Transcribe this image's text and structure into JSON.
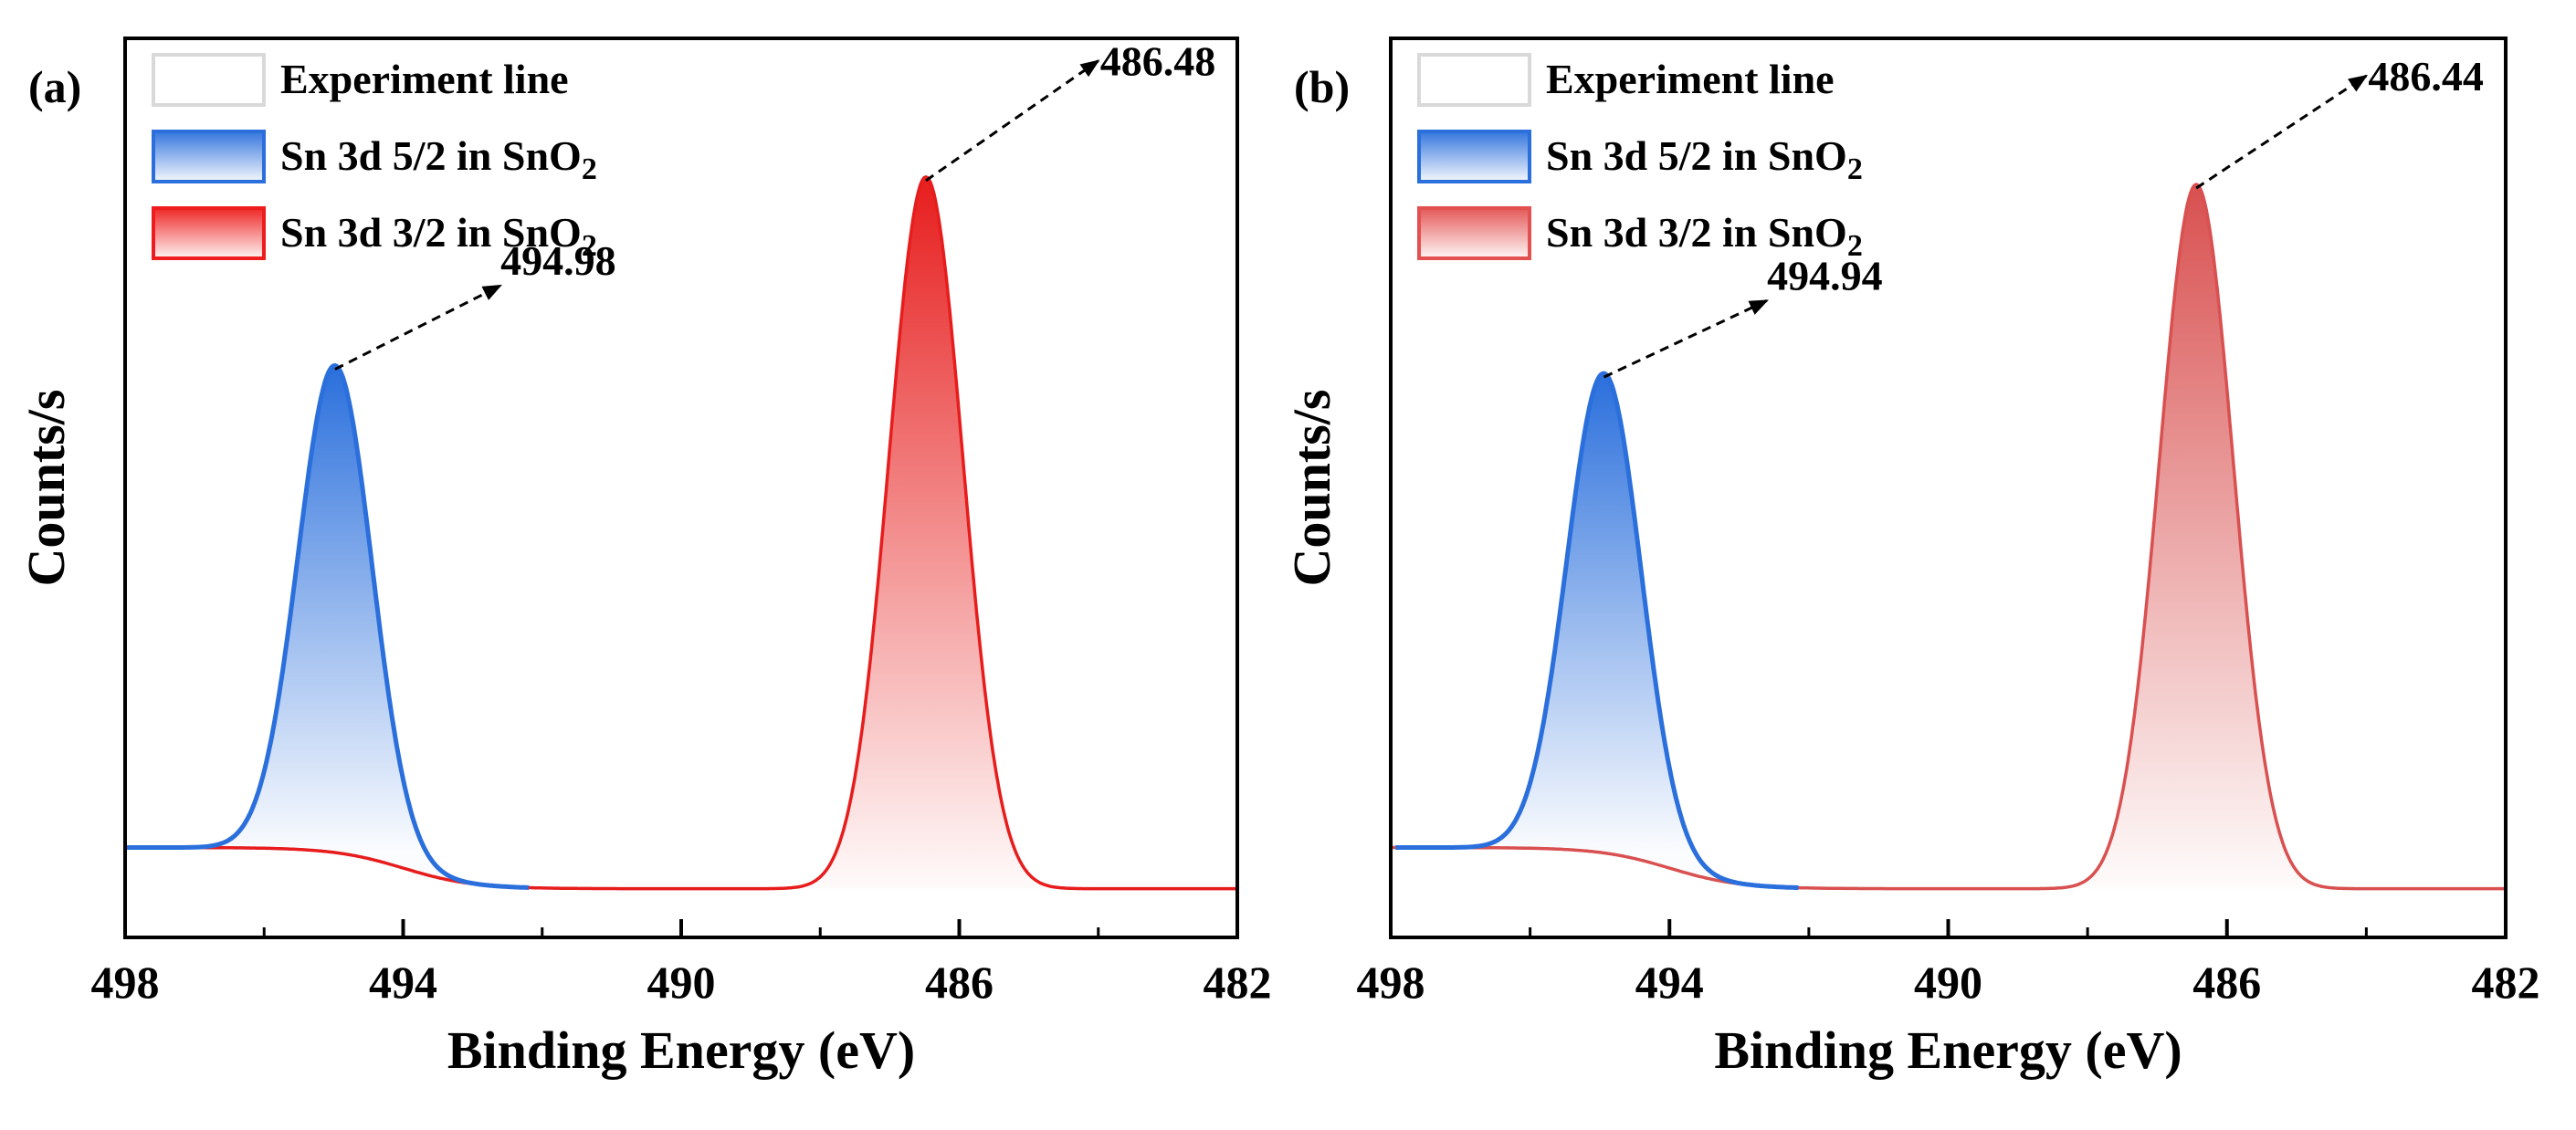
{
  "chart_data": [
    {
      "type": "line",
      "panel_label": "(a)",
      "xlabel": "Binding Energy (eV)",
      "ylabel": "Counts/s",
      "xlim": [
        498,
        482
      ],
      "ylim": [
        -0.08,
        1.12
      ],
      "xticks": [
        498,
        494,
        490,
        486,
        482
      ],
      "x_tick_labels": [
        "498",
        "494",
        "490",
        "486",
        "482"
      ],
      "baseline": {
        "left": 0.04,
        "right": -0.015
      },
      "legend": {
        "position": "top-left",
        "entries": [
          {
            "base": "Experiment line",
            "sub": "",
            "color": "#d9d9d9"
          },
          {
            "base": "Sn 3d 5/2 in SnO",
            "sub": "2",
            "color": "#2a6fdc"
          },
          {
            "base": "Sn 3d 3/2 in SnO",
            "sub": "2",
            "color": "#ee1c1c"
          }
        ]
      },
      "series": [
        {
          "name": "Sn 3d 5/2 in SnO2",
          "type": "peak",
          "center": 494.98,
          "height": 0.65,
          "fwhm": 1.25,
          "color": "#2a6fdc"
        },
        {
          "name": "Sn 3d 3/2 in SnO2",
          "type": "peak",
          "center": 486.48,
          "height": 0.95,
          "fwhm": 1.25,
          "color": "#e71d1d"
        }
      ],
      "annotations": [
        {
          "text": "494.98",
          "peak": 494.98,
          "arrow_to": [
            492.6,
            0.79
          ]
        },
        {
          "text": "486.48",
          "peak": 486.48,
          "arrow_to": [
            484.0,
            1.09
          ]
        }
      ]
    },
    {
      "type": "line",
      "panel_label": "(b)",
      "xlabel": "Binding Energy (eV)",
      "ylabel": "Counts/s",
      "xlim": [
        498,
        482
      ],
      "ylim": [
        -0.08,
        1.12
      ],
      "xticks": [
        498,
        494,
        490,
        486,
        482
      ],
      "x_tick_labels": [
        "498",
        "494",
        "490",
        "486",
        "482"
      ],
      "baseline": {
        "left": 0.04,
        "right": -0.015
      },
      "legend": {
        "position": "top-left",
        "entries": [
          {
            "base": "Experiment line",
            "sub": "",
            "color": "#d9d9d9"
          },
          {
            "base": "Sn 3d 5/2 in SnO",
            "sub": "2",
            "color": "#2a6fdc"
          },
          {
            "base": "Sn 3d 3/2 in SnO",
            "sub": "2",
            "color": "#e35050"
          }
        ]
      },
      "series": [
        {
          "name": "Sn 3d 5/2 in SnO2",
          "type": "peak",
          "center": 494.94,
          "height": 0.64,
          "fwhm": 1.25,
          "color": "#2a6fdc"
        },
        {
          "name": "Sn 3d 3/2 in SnO2",
          "type": "peak",
          "center": 486.44,
          "height": 0.94,
          "fwhm": 1.25,
          "color": "#d95050"
        }
      ],
      "annotations": [
        {
          "text": "494.94",
          "peak": 494.94,
          "arrow_to": [
            492.6,
            0.77
          ]
        },
        {
          "text": "486.44",
          "peak": 486.44,
          "arrow_to": [
            484.0,
            1.07
          ]
        }
      ]
    }
  ]
}
